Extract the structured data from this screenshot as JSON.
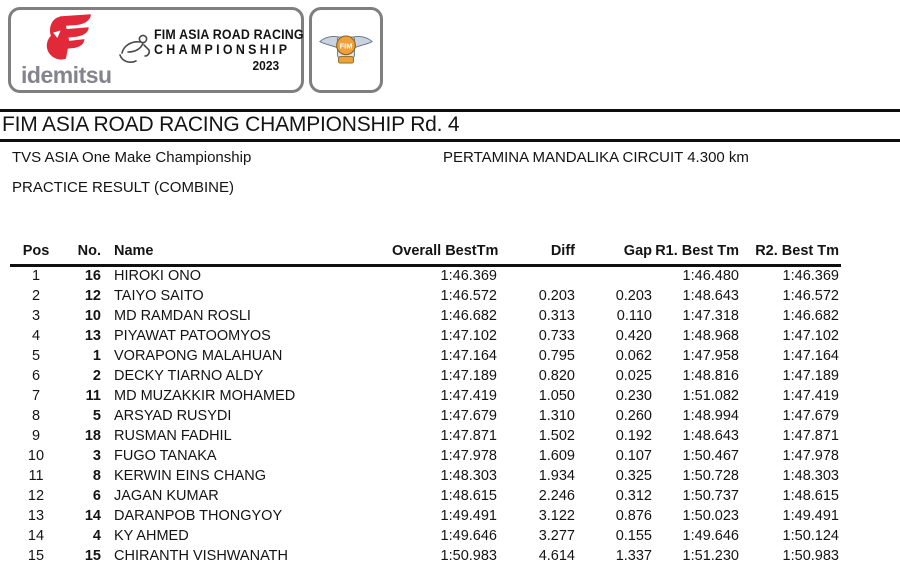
{
  "logo_panel": {
    "idemitsu_wordmark": "idemitsu",
    "series_title_line1": "FIM ASIA ROAD RACING",
    "series_title_line2": "CHAMPIONSHIP",
    "series_year": "2023",
    "fim_badge_text": "FIM"
  },
  "page": {
    "title": "FIM ASIA ROAD RACING CHAMPIONSHIP Rd. 4",
    "event_name": "TVS ASIA One Make Championship",
    "circuit": "PERTAMINA MANDALIKA CIRCUIT 4.300 km",
    "session_title": "PRACTICE RESULT (COMBINE)"
  },
  "colors": {
    "accent_red": "#e2293a",
    "badge_orange": "#f0a03a",
    "wing_silver": "#c9d4e0",
    "rule_black": "#0e0e0e",
    "border_gray": "#7f7f7f",
    "idemitsu_gray": "#84848c"
  },
  "table": {
    "columns": [
      "Pos",
      "No.",
      "Name",
      "Overall BestTm",
      "Diff",
      "Gap",
      "R1. Best Tm",
      "R2. Best Tm"
    ],
    "rows": [
      [
        "1",
        "16",
        "HIROKI ONO",
        "1:46.369",
        "",
        "",
        "1:46.480",
        "1:46.369"
      ],
      [
        "2",
        "12",
        "TAIYO SAITO",
        "1:46.572",
        "0.203",
        "0.203",
        "1:48.643",
        "1:46.572"
      ],
      [
        "3",
        "10",
        "MD RAMDAN ROSLI",
        "1:46.682",
        "0.313",
        "0.110",
        "1:47.318",
        "1:46.682"
      ],
      [
        "4",
        "13",
        "PIYAWAT PATOOMYOS",
        "1:47.102",
        "0.733",
        "0.420",
        "1:48.968",
        "1:47.102"
      ],
      [
        "5",
        "1",
        "VORAPONG MALAHUAN",
        "1:47.164",
        "0.795",
        "0.062",
        "1:47.958",
        "1:47.164"
      ],
      [
        "6",
        "2",
        "DECKY TIARNO ALDY",
        "1:47.189",
        "0.820",
        "0.025",
        "1:48.816",
        "1:47.189"
      ],
      [
        "7",
        "11",
        "MD MUZAKKIR MOHAMED",
        "1:47.419",
        "1.050",
        "0.230",
        "1:51.082",
        "1:47.419"
      ],
      [
        "8",
        "5",
        "ARSYAD RUSYDI",
        "1:47.679",
        "1.310",
        "0.260",
        "1:48.994",
        "1:47.679"
      ],
      [
        "9",
        "18",
        "RUSMAN FADHIL",
        "1:47.871",
        "1.502",
        "0.192",
        "1:48.643",
        "1:47.871"
      ],
      [
        "10",
        "3",
        "FUGO TANAKA",
        "1:47.978",
        "1.609",
        "0.107",
        "1:50.467",
        "1:47.978"
      ],
      [
        "11",
        "8",
        "KERWIN EINS CHANG",
        "1:48.303",
        "1.934",
        "0.325",
        "1:50.728",
        "1:48.303"
      ],
      [
        "12",
        "6",
        "JAGAN KUMAR",
        "1:48.615",
        "2.246",
        "0.312",
        "1:50.737",
        "1:48.615"
      ],
      [
        "13",
        "14",
        "DARANPOB THONGYOY",
        "1:49.491",
        "3.122",
        "0.876",
        "1:50.023",
        "1:49.491"
      ],
      [
        "14",
        "4",
        "KY AHMED",
        "1:49.646",
        "3.277",
        "0.155",
        "1:49.646",
        "1:50.124"
      ],
      [
        "15",
        "15",
        "CHIRANTH VISHWANATH",
        "1:50.983",
        "4.614",
        "1.337",
        "1:51.230",
        "1:50.983"
      ]
    ]
  }
}
